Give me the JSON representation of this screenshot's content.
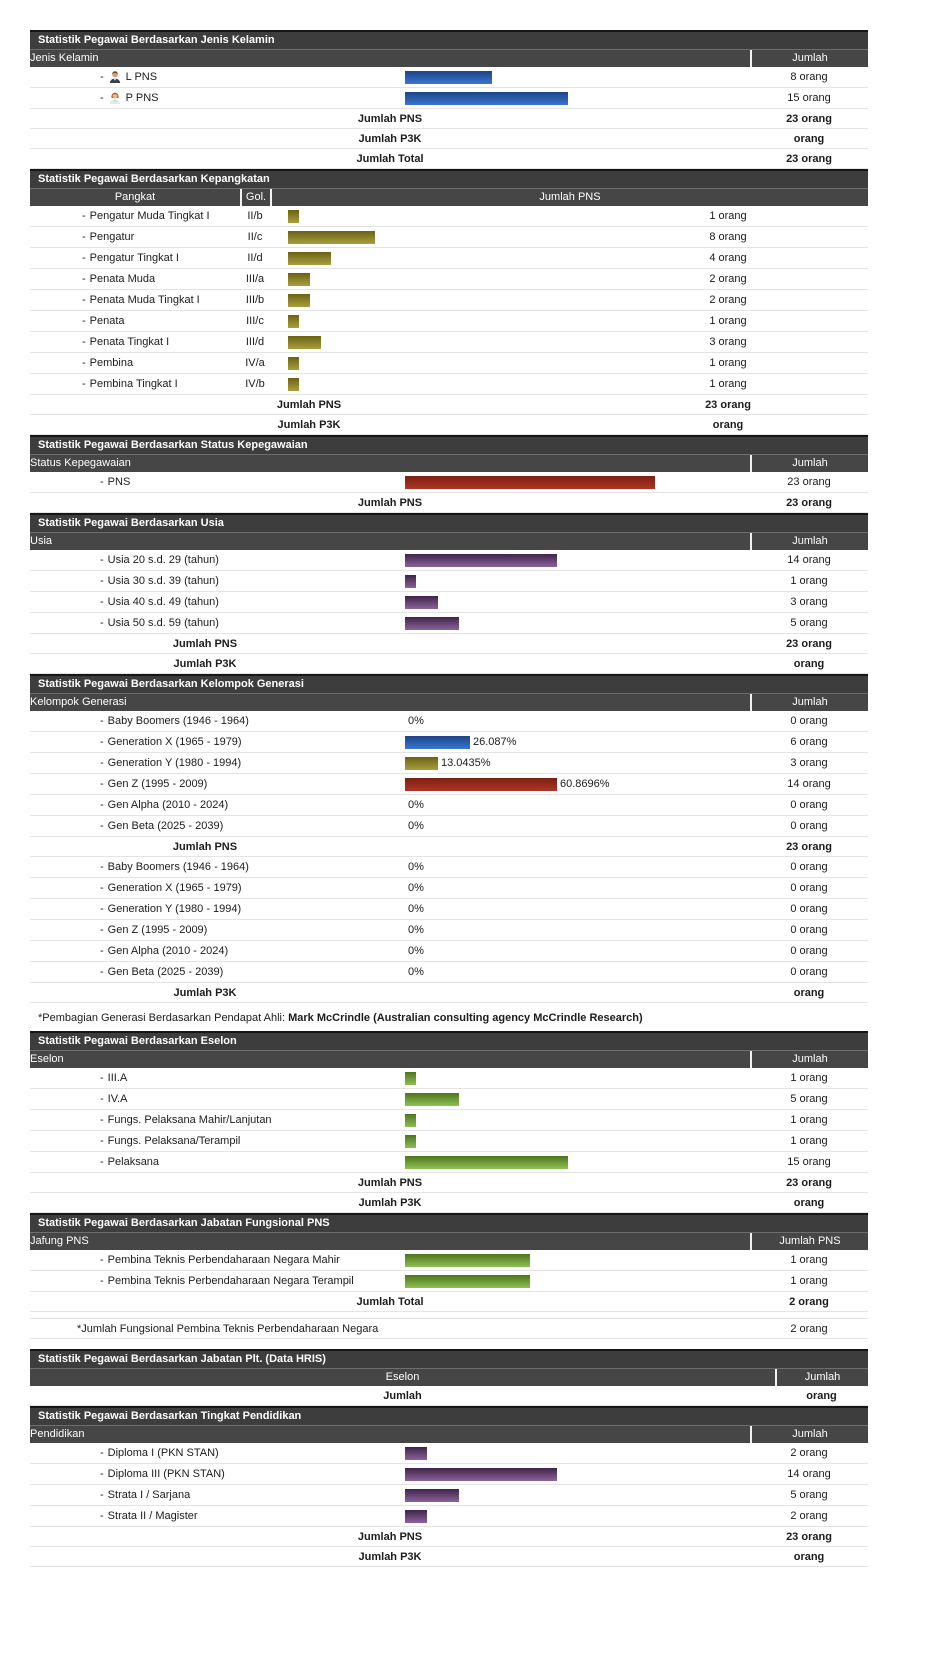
{
  "strings": {
    "bullet": "-"
  },
  "theme": {
    "section_header_bg": "#3d3d3d",
    "column_header_bg": "#464646",
    "header_text_color": "#ffffff",
    "text_color": "#1c1c1c",
    "row_border_color": "#e4e4e4",
    "bar_gradients": {
      "blue": [
        "#1d4584",
        "#3a74d4"
      ],
      "olive": [
        "#6b6213",
        "#a89e40"
      ],
      "red": [
        "#7c2012",
        "#ae3526"
      ],
      "purple": [
        "#402449",
        "#8a629b"
      ],
      "green": [
        "#4f741c",
        "#8cc055"
      ]
    }
  },
  "footnote": {
    "prefix": "*Pembagian Generasi Berdasarkan Pendapat Ahli: ",
    "bold": "Mark McCrindle (Australian consulting agency McCrindle Research)"
  },
  "sections": [
    {
      "id": "jenis-kelamin",
      "kind": "generic",
      "total_center": "main",
      "title": "Statistik Pegawai Berdasarkan Jenis Kelamin",
      "columns": [
        {
          "label": "Jenis Kelamin"
        },
        {
          "label": "Jumlah"
        }
      ],
      "rows": [
        {
          "type": "bar",
          "label": "L PNS",
          "icon": "male-avatar",
          "color": "blue",
          "value": 8,
          "pct": 34.78,
          "count": "8 orang"
        },
        {
          "type": "bar",
          "label": "P PNS",
          "icon": "female-avatar",
          "color": "blue",
          "value": 15,
          "pct": 65.22,
          "count": "15 orang"
        },
        {
          "type": "total",
          "label": "Jumlah PNS",
          "count": "23 orang"
        },
        {
          "type": "total",
          "label": "Jumlah P3K",
          "count": "orang"
        },
        {
          "type": "total",
          "label": "Jumlah Total",
          "count": "23 orang"
        }
      ]
    },
    {
      "id": "kepangkatan",
      "kind": "pangkat",
      "total_center": "main",
      "title": "Statistik Pegawai Berdasarkan Kepangkatan",
      "columns": [
        {
          "label": "Pangkat"
        },
        {
          "label": "Gol."
        },
        {
          "label": "Jumlah PNS"
        }
      ],
      "rows": [
        {
          "type": "bar",
          "label": "Pengatur Muda Tingkat I",
          "gol": "II/b",
          "color": "olive",
          "value": 1,
          "pct": 4.35,
          "count": "1 orang"
        },
        {
          "type": "bar",
          "label": "Pengatur",
          "gol": "II/c",
          "color": "olive",
          "value": 8,
          "pct": 34.78,
          "count": "8 orang"
        },
        {
          "type": "bar",
          "label": "Pengatur Tingkat I",
          "gol": "II/d",
          "color": "olive",
          "value": 4,
          "pct": 17.39,
          "count": "4 orang"
        },
        {
          "type": "bar",
          "label": "Penata Muda",
          "gol": "III/a",
          "color": "olive",
          "value": 2,
          "pct": 8.7,
          "count": "2 orang"
        },
        {
          "type": "bar",
          "label": "Penata Muda Tingkat I",
          "gol": "III/b",
          "color": "olive",
          "value": 2,
          "pct": 8.7,
          "count": "2 orang"
        },
        {
          "type": "bar",
          "label": "Penata",
          "gol": "III/c",
          "color": "olive",
          "value": 1,
          "pct": 4.35,
          "count": "1 orang"
        },
        {
          "type": "bar",
          "label": "Penata Tingkat I",
          "gol": "III/d",
          "color": "olive",
          "value": 3,
          "pct": 13.04,
          "count": "3 orang"
        },
        {
          "type": "bar",
          "label": "Pembina",
          "gol": "IV/a",
          "color": "olive",
          "value": 1,
          "pct": 4.35,
          "count": "1 orang"
        },
        {
          "type": "bar",
          "label": "Pembina Tingkat I",
          "gol": "IV/b",
          "color": "olive",
          "value": 1,
          "pct": 4.35,
          "count": "1 orang"
        },
        {
          "type": "total",
          "label": "Jumlah PNS",
          "count": "23 orang"
        },
        {
          "type": "total",
          "label": "Jumlah P3K",
          "count": "orang"
        }
      ]
    },
    {
      "id": "status-kepegawaian",
      "kind": "generic",
      "total_center": "main",
      "title": "Statistik Pegawai Berdasarkan Status Kepegawaian",
      "columns": [
        {
          "label": "Status Kepegawaian"
        },
        {
          "label": "Jumlah"
        }
      ],
      "rows": [
        {
          "type": "bar",
          "label": "PNS",
          "color": "red",
          "value": 23,
          "pct": 100,
          "count": "23 orang"
        },
        {
          "type": "total",
          "label": "Jumlah PNS",
          "count": "23 orang"
        }
      ]
    },
    {
      "id": "usia",
      "kind": "generic",
      "total_center": "label",
      "title": "Statistik Pegawai Berdasarkan Usia",
      "columns": [
        {
          "label": "Usia"
        },
        {
          "label": "Jumlah"
        }
      ],
      "rows": [
        {
          "type": "bar",
          "label": "Usia 20 s.d. 29 (tahun)",
          "color": "purple",
          "value": 14,
          "pct": 60.87,
          "count": "14 orang"
        },
        {
          "type": "bar",
          "label": "Usia 30 s.d. 39 (tahun)",
          "color": "purple",
          "value": 1,
          "pct": 4.35,
          "count": "1 orang"
        },
        {
          "type": "bar",
          "label": "Usia 40 s.d. 49 (tahun)",
          "color": "purple",
          "value": 3,
          "pct": 13.04,
          "count": "3 orang"
        },
        {
          "type": "bar",
          "label": "Usia 50 s.d. 59 (tahun)",
          "color": "purple",
          "value": 5,
          "pct": 21.74,
          "count": "5 orang"
        },
        {
          "type": "total",
          "label": "Jumlah PNS",
          "count": "23 orang"
        },
        {
          "type": "total",
          "label": "Jumlah P3K",
          "count": "orang"
        }
      ]
    },
    {
      "id": "kelompok-generasi",
      "kind": "generic",
      "total_center": "label",
      "title": "Statistik Pegawai Berdasarkan Kelompok Generasi",
      "columns": [
        {
          "label": "Kelompok Generasi"
        },
        {
          "label": "Jumlah"
        }
      ],
      "rows": [
        {
          "type": "bar",
          "label": "Baby Boomers (1946 - 1964)",
          "value": 0,
          "pct": 0,
          "pct_label": "0%",
          "count": "0 orang"
        },
        {
          "type": "bar",
          "label": "Generation X (1965 - 1979)",
          "color": "blue",
          "value": 6,
          "pct": 26.09,
          "pct_label": "26.087%",
          "count": "6 orang"
        },
        {
          "type": "bar",
          "label": "Generation Y (1980 - 1994)",
          "color": "olive",
          "value": 3,
          "pct": 13.04,
          "pct_label": "13.0435%",
          "count": "3 orang"
        },
        {
          "type": "bar",
          "label": "Gen Z (1995 - 2009)",
          "color": "red",
          "value": 14,
          "pct": 60.87,
          "pct_label": "60.8696%",
          "count": "14 orang"
        },
        {
          "type": "bar",
          "label": "Gen Alpha (2010 - 2024)",
          "value": 0,
          "pct": 0,
          "pct_label": "0%",
          "count": "0 orang"
        },
        {
          "type": "bar",
          "label": "Gen Beta (2025 - 2039)",
          "value": 0,
          "pct": 0,
          "pct_label": "0%",
          "count": "0 orang"
        },
        {
          "type": "total",
          "label": "Jumlah PNS",
          "count": "23 orang"
        },
        {
          "type": "bar",
          "label": "Baby Boomers (1946 - 1964)",
          "value": 0,
          "pct": 0,
          "pct_label": "0%",
          "count": "0 orang"
        },
        {
          "type": "bar",
          "label": "Generation X (1965 - 1979)",
          "value": 0,
          "pct": 0,
          "pct_label": "0%",
          "count": "0 orang"
        },
        {
          "type": "bar",
          "label": "Generation Y (1980 - 1994)",
          "value": 0,
          "pct": 0,
          "pct_label": "0%",
          "count": "0 orang"
        },
        {
          "type": "bar",
          "label": "Gen Z (1995 - 2009)",
          "value": 0,
          "pct": 0,
          "pct_label": "0%",
          "count": "0 orang"
        },
        {
          "type": "bar",
          "label": "Gen Alpha (2010 - 2024)",
          "value": 0,
          "pct": 0,
          "pct_label": "0%",
          "count": "0 orang"
        },
        {
          "type": "bar",
          "label": "Gen Beta (2025 - 2039)",
          "value": 0,
          "pct": 0,
          "pct_label": "0%",
          "count": "0 orang"
        },
        {
          "type": "total",
          "label": "Jumlah P3K",
          "count": "orang"
        }
      ]
    },
    {
      "id": "eselon",
      "kind": "generic",
      "total_center": "main",
      "title": "Statistik Pegawai Berdasarkan Eselon",
      "columns": [
        {
          "label": "Eselon"
        },
        {
          "label": "Jumlah"
        }
      ],
      "rows": [
        {
          "type": "bar",
          "label": "III.A",
          "color": "green",
          "value": 1,
          "pct": 4.35,
          "count": "1 orang"
        },
        {
          "type": "bar",
          "label": "IV.A",
          "color": "green",
          "value": 5,
          "pct": 21.74,
          "count": "5 orang"
        },
        {
          "type": "bar",
          "label": "Fungs. Pelaksana Mahir/Lanjutan",
          "color": "green",
          "value": 1,
          "pct": 4.35,
          "count": "1 orang"
        },
        {
          "type": "bar",
          "label": "Fungs. Pelaksana/Terampil",
          "color": "green",
          "value": 1,
          "pct": 4.35,
          "count": "1 orang"
        },
        {
          "type": "bar",
          "label": "Pelaksana",
          "color": "green",
          "value": 15,
          "pct": 65.22,
          "count": "15 orang"
        },
        {
          "type": "total",
          "label": "Jumlah PNS",
          "count": "23 orang"
        },
        {
          "type": "total",
          "label": "Jumlah P3K",
          "count": "orang"
        }
      ]
    },
    {
      "id": "jafung-pns",
      "kind": "generic",
      "total_center": "main",
      "title": "Statistik Pegawai Berdasarkan Jabatan Fungsional PNS",
      "columns": [
        {
          "label": "Jafung PNS"
        },
        {
          "label": "Jumlah PNS"
        }
      ],
      "rows": [
        {
          "type": "bar",
          "label": "Pembina Teknis Perbendaharaan Negara Mahir",
          "color": "green",
          "value": 1,
          "pct": 50,
          "count": "1 orang"
        },
        {
          "type": "bar",
          "label": "Pembina Teknis Perbendaharaan Negara Terampil",
          "color": "green",
          "value": 1,
          "pct": 50,
          "count": "1 orang"
        },
        {
          "type": "total",
          "label": "Jumlah Total",
          "count": "2 orang"
        },
        {
          "type": "note",
          "label": "*Jumlah Fungsional Pembina Teknis Perbendaharaan Negara",
          "count": "2 orang"
        }
      ]
    },
    {
      "id": "jabatan-plt",
      "kind": "plt",
      "total_center": "main",
      "title": "Statistik Pegawai Berdasarkan Jabatan Plt. (Data HRIS)",
      "columns": [
        {
          "label": "Eselon"
        },
        {
          "label": "Jumlah"
        }
      ],
      "rows": [
        {
          "type": "total",
          "label": "Jumlah",
          "count": "orang"
        }
      ]
    },
    {
      "id": "pendidikan",
      "kind": "generic",
      "total_center": "main",
      "title": "Statistik Pegawai Berdasarkan Tingkat Pendidikan",
      "columns": [
        {
          "label": "Pendidikan"
        },
        {
          "label": "Jumlah"
        }
      ],
      "rows": [
        {
          "type": "bar",
          "label": "Diploma I (PKN STAN)",
          "color": "purple",
          "value": 2,
          "pct": 8.7,
          "count": "2 orang"
        },
        {
          "type": "bar",
          "label": "Diploma III (PKN STAN)",
          "color": "purple",
          "value": 14,
          "pct": 60.87,
          "count": "14 orang"
        },
        {
          "type": "bar",
          "label": "Strata I / Sarjana",
          "color": "purple",
          "value": 5,
          "pct": 21.74,
          "count": "5 orang"
        },
        {
          "type": "bar",
          "label": "Strata II / Magister",
          "color": "purple",
          "value": 2,
          "pct": 8.7,
          "count": "2 orang"
        },
        {
          "type": "total",
          "label": "Jumlah PNS",
          "count": "23 orang"
        },
        {
          "type": "total",
          "label": "Jumlah P3K",
          "count": "orang"
        }
      ]
    }
  ],
  "chart_data": [
    {
      "type": "bar",
      "title": "Statistik Pegawai Berdasarkan Jenis Kelamin",
      "categories": [
        "L PNS",
        "P PNS"
      ],
      "values": [
        8,
        15
      ],
      "unit": "orang",
      "totals": {
        "Jumlah PNS": "23 orang",
        "Jumlah P3K": "orang",
        "Jumlah Total": "23 orang"
      }
    },
    {
      "type": "bar",
      "title": "Statistik Pegawai Berdasarkan Kepangkatan",
      "categories": [
        "Pengatur Muda Tingkat I (II/b)",
        "Pengatur (II/c)",
        "Pengatur Tingkat I (II/d)",
        "Penata Muda (III/a)",
        "Penata Muda Tingkat I (III/b)",
        "Penata (III/c)",
        "Penata Tingkat I (III/d)",
        "Pembina (IV/a)",
        "Pembina Tingkat I (IV/b)"
      ],
      "values": [
        1,
        8,
        4,
        2,
        2,
        1,
        3,
        1,
        1
      ],
      "unit": "orang",
      "totals": {
        "Jumlah PNS": "23 orang",
        "Jumlah P3K": "orang"
      }
    },
    {
      "type": "bar",
      "title": "Statistik Pegawai Berdasarkan Status Kepegawaian",
      "categories": [
        "PNS"
      ],
      "values": [
        23
      ],
      "unit": "orang",
      "totals": {
        "Jumlah PNS": "23 orang"
      }
    },
    {
      "type": "bar",
      "title": "Statistik Pegawai Berdasarkan Usia",
      "categories": [
        "Usia 20 s.d. 29 (tahun)",
        "Usia 30 s.d. 39 (tahun)",
        "Usia 40 s.d. 49 (tahun)",
        "Usia 50 s.d. 59 (tahun)"
      ],
      "values": [
        14,
        1,
        3,
        5
      ],
      "unit": "orang",
      "totals": {
        "Jumlah PNS": "23 orang",
        "Jumlah P3K": "orang"
      }
    },
    {
      "type": "bar",
      "title": "Statistik Pegawai Berdasarkan Kelompok Generasi (PNS)",
      "categories": [
        "Baby Boomers (1946 - 1964)",
        "Generation X (1965 - 1979)",
        "Generation Y (1980 - 1994)",
        "Gen Z (1995 - 2009)",
        "Gen Alpha (2010 - 2024)",
        "Gen Beta (2025 - 2039)"
      ],
      "values": [
        0,
        6,
        3,
        14,
        0,
        0
      ],
      "percent_labels": [
        "0%",
        "26.087%",
        "13.0435%",
        "60.8696%",
        "0%",
        "0%"
      ],
      "unit": "orang",
      "totals": {
        "Jumlah PNS": "23 orang"
      }
    },
    {
      "type": "bar",
      "title": "Statistik Pegawai Berdasarkan Kelompok Generasi (P3K)",
      "categories": [
        "Baby Boomers (1946 - 1964)",
        "Generation X (1965 - 1979)",
        "Generation Y (1980 - 1994)",
        "Gen Z (1995 - 2009)",
        "Gen Alpha (2010 - 2024)",
        "Gen Beta (2025 - 2039)"
      ],
      "values": [
        0,
        0,
        0,
        0,
        0,
        0
      ],
      "percent_labels": [
        "0%",
        "0%",
        "0%",
        "0%",
        "0%",
        "0%"
      ],
      "unit": "orang",
      "totals": {
        "Jumlah P3K": "orang"
      }
    },
    {
      "type": "bar",
      "title": "Statistik Pegawai Berdasarkan Eselon",
      "categories": [
        "III.A",
        "IV.A",
        "Fungs. Pelaksana Mahir/Lanjutan",
        "Fungs. Pelaksana/Terampil",
        "Pelaksana"
      ],
      "values": [
        1,
        5,
        1,
        1,
        15
      ],
      "unit": "orang",
      "totals": {
        "Jumlah PNS": "23 orang",
        "Jumlah P3K": "orang"
      }
    },
    {
      "type": "bar",
      "title": "Statistik Pegawai Berdasarkan Jabatan Fungsional PNS",
      "categories": [
        "Pembina Teknis Perbendaharaan Negara Mahir",
        "Pembina Teknis Perbendaharaan Negara Terampil"
      ],
      "values": [
        1,
        1
      ],
      "unit": "orang",
      "totals": {
        "Jumlah Total": "2 orang",
        "Jumlah Fungsional Pembina Teknis Perbendaharaan Negara": "2 orang"
      }
    },
    {
      "type": "table",
      "title": "Statistik Pegawai Berdasarkan Jabatan Plt. (Data HRIS)",
      "categories": [],
      "values": [],
      "totals": {
        "Jumlah": "orang"
      }
    },
    {
      "type": "bar",
      "title": "Statistik Pegawai Berdasarkan Tingkat Pendidikan",
      "categories": [
        "Diploma I (PKN STAN)",
        "Diploma III (PKN STAN)",
        "Strata I / Sarjana",
        "Strata II / Magister"
      ],
      "values": [
        2,
        14,
        5,
        2
      ],
      "unit": "orang",
      "totals": {
        "Jumlah PNS": "23 orang",
        "Jumlah P3K": "orang"
      }
    }
  ]
}
